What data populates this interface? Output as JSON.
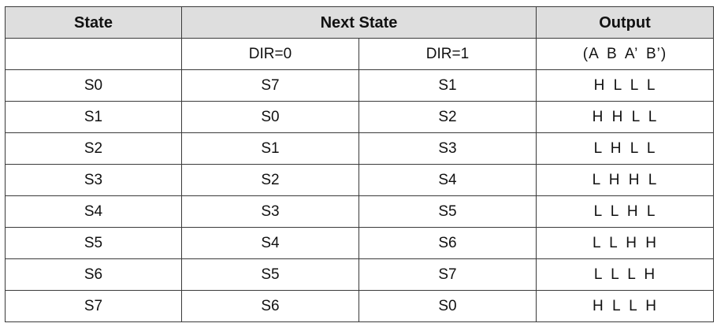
{
  "table": {
    "headers": {
      "state": "State",
      "next_state": "Next State",
      "output": "Output"
    },
    "subheaders": {
      "state": "",
      "dir0": "DIR=0",
      "dir1": "DIR=1",
      "output": "(A B A’ B’)"
    },
    "rows": [
      {
        "state": "S0",
        "dir0": "S7",
        "dir1": "S1",
        "output": "H L L L"
      },
      {
        "state": "S1",
        "dir0": "S0",
        "dir1": "S2",
        "output": "H H L L"
      },
      {
        "state": "S2",
        "dir0": "S1",
        "dir1": "S3",
        "output": "L H L L"
      },
      {
        "state": "S3",
        "dir0": "S2",
        "dir1": "S4",
        "output": "L H H L"
      },
      {
        "state": "S4",
        "dir0": "S3",
        "dir1": "S5",
        "output": "L L H L"
      },
      {
        "state": "S5",
        "dir0": "S4",
        "dir1": "S6",
        "output": "L L H H"
      },
      {
        "state": "S6",
        "dir0": "S5",
        "dir1": "S7",
        "output": "L L L H"
      },
      {
        "state": "S7",
        "dir0": "S6",
        "dir1": "S0",
        "output": "H L L H"
      }
    ]
  }
}
